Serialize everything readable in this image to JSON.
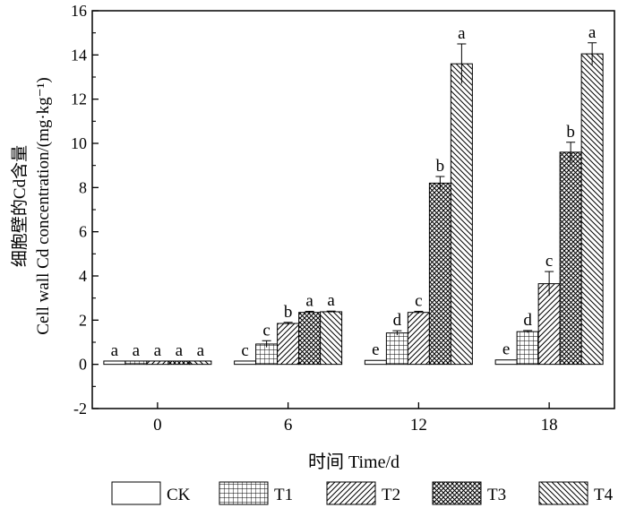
{
  "chart_data": {
    "type": "bar",
    "xlabel": "时间  Time/d",
    "ylabel_cn": "细胞壁的Cd含量",
    "ylabel_en": "Cell wall Cd concentration/(mg·kg⁻¹)",
    "categories": [
      "0",
      "6",
      "12",
      "18"
    ],
    "ylim": [
      -2,
      16
    ],
    "yticks": [
      "-2",
      "0",
      "2",
      "4",
      "6",
      "8",
      "10",
      "12",
      "14",
      "16"
    ],
    "yticks_values": [
      -2,
      0,
      2,
      4,
      6,
      8,
      10,
      12,
      14,
      16
    ],
    "legend_position": "bottom",
    "series": [
      {
        "name": "CK",
        "pattern": "none",
        "values": [
          0.15,
          0.15,
          0.18,
          0.2
        ],
        "errors": [
          0,
          0,
          0,
          0
        ],
        "letters": [
          "a",
          "c",
          "e",
          "e"
        ]
      },
      {
        "name": "T1",
        "pattern": "grid",
        "values": [
          0.15,
          0.92,
          1.42,
          1.48
        ],
        "errors": [
          0,
          0.15,
          0.1,
          0.05
        ],
        "letters": [
          "a",
          "c",
          "d",
          "d"
        ]
      },
      {
        "name": "T2",
        "pattern": "diag-fwd",
        "values": [
          0.15,
          1.85,
          2.35,
          3.65
        ],
        "errors": [
          0,
          0.05,
          0.05,
          0.55
        ],
        "letters": [
          "a",
          "b",
          "c",
          "c"
        ]
      },
      {
        "name": "T3",
        "pattern": "crosshatch",
        "values": [
          0.15,
          2.35,
          8.2,
          9.6
        ],
        "errors": [
          0,
          0.05,
          0.3,
          0.45
        ],
        "letters": [
          "a",
          "a",
          "b",
          "b"
        ]
      },
      {
        "name": "T4",
        "pattern": "diag-back",
        "values": [
          0.15,
          2.38,
          13.6,
          14.05
        ],
        "errors": [
          0,
          0.03,
          0.9,
          0.5
        ],
        "letters": [
          "a",
          "a",
          "a",
          "a"
        ]
      }
    ]
  }
}
